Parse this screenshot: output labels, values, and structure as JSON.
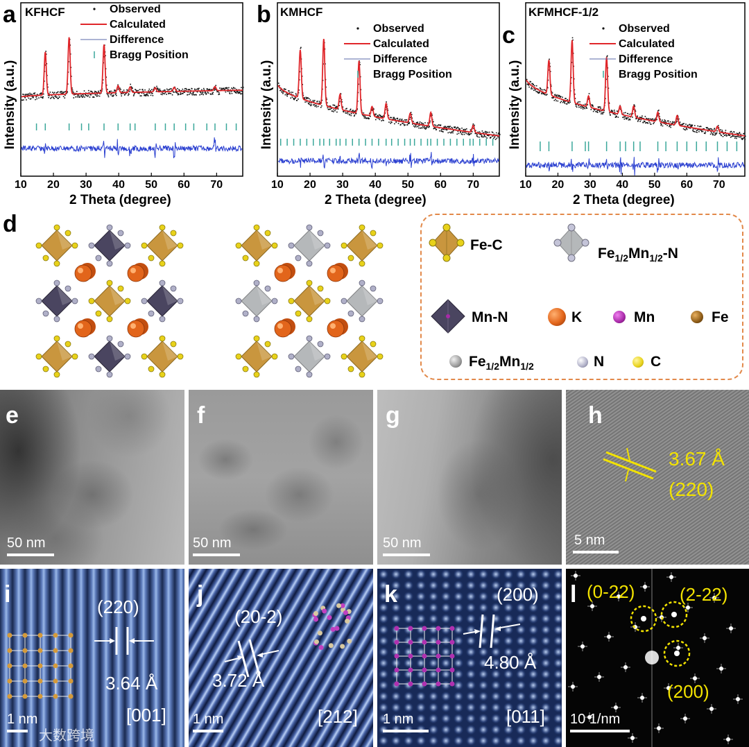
{
  "panel_labels": {
    "a": "a",
    "b": "b",
    "c": "c",
    "d": "d",
    "e": "e",
    "f": "f",
    "g": "g",
    "h": "h",
    "i": "i",
    "j": "j",
    "k": "k",
    "l": "l"
  },
  "xrd": [
    {
      "title": "KFHCF"
    },
    {
      "title": "KMHCF"
    },
    {
      "title": "KFMHCF-1/2"
    }
  ],
  "legend": {
    "observed": "Observed",
    "calculated": "Calculated",
    "difference": "Difference",
    "bragg": "Bragg Position"
  },
  "axes": {
    "xlabel": "2 Theta (degree)",
    "ylabel": "Intensity (a.u.)",
    "ticks": [
      "10",
      "20",
      "30",
      "40",
      "50",
      "60",
      "70"
    ]
  },
  "chart_data": [
    {
      "type": "line",
      "title": "KFHCF",
      "xlabel": "2 Theta (degree)",
      "ylabel": "Intensity (a.u.)",
      "xlim": [
        10,
        78
      ],
      "tick_labels": [
        "10",
        "20",
        "30",
        "40",
        "50",
        "60",
        "70"
      ],
      "peaks": [
        17.5,
        24.8,
        35.5,
        39.8,
        43.5,
        51.2,
        57.0,
        69.5
      ],
      "bragg_positions": [
        14.8,
        17.5,
        24.8,
        28.6,
        30.8,
        35.5,
        39.8,
        43.5,
        45.0,
        51.2,
        54.3,
        57.0,
        60.5,
        63.0,
        67.0,
        69.5,
        73.0,
        76.0
      ],
      "series": [
        {
          "name": "Observed"
        },
        {
          "name": "Calculated"
        },
        {
          "name": "Difference"
        },
        {
          "name": "Bragg Position"
        }
      ]
    },
    {
      "type": "line",
      "title": "KMHCF",
      "xlabel": "2 Theta (degree)",
      "ylabel": "Intensity (a.u.)",
      "xlim": [
        10,
        78
      ],
      "tick_labels": [
        "10",
        "20",
        "30",
        "40",
        "50",
        "60",
        "70"
      ],
      "peaks": [
        17.0,
        24.2,
        29.2,
        35.0,
        39.0,
        43.3,
        50.7,
        57.0,
        70.0
      ],
      "bragg_positions": [
        11.0,
        13.0,
        15.0,
        17.0,
        19.0,
        21.0,
        23.0,
        24.2,
        26.0,
        28.0,
        29.2,
        31.0,
        33.0,
        35.0,
        37.0,
        39.0,
        41.0,
        43.3,
        45.0,
        47.0,
        49.0,
        50.7,
        52.0,
        54.0,
        56.0,
        57.0,
        59.0,
        61.0,
        63.0,
        65.0,
        67.0,
        69.0,
        70.0,
        72.0,
        74.0,
        76.0
      ],
      "series": [
        {
          "name": "Observed"
        },
        {
          "name": "Calculated"
        },
        {
          "name": "Difference"
        },
        {
          "name": "Bragg Position"
        }
      ]
    },
    {
      "type": "line",
      "title": "KFMHCF-1/2",
      "xlabel": "2 Theta (degree)",
      "ylabel": "Intensity (a.u.)",
      "xlim": [
        10,
        78
      ],
      "tick_labels": [
        "10",
        "20",
        "30",
        "40",
        "50",
        "60",
        "70"
      ],
      "peaks": [
        17.2,
        24.4,
        29.5,
        35.1,
        39.3,
        43.5,
        51.0,
        57.0,
        69.5
      ],
      "bragg_positions": [
        14.5,
        17.2,
        24.4,
        28.5,
        29.5,
        35.1,
        39.3,
        41.0,
        43.5,
        45.5,
        51.0,
        53.5,
        57.0,
        60.0,
        63.0,
        66.0,
        69.5,
        72.5,
        75.5
      ],
      "series": [
        {
          "name": "Observed"
        },
        {
          "name": "Calculated"
        },
        {
          "name": "Difference"
        },
        {
          "name": "Bragg Position"
        }
      ]
    }
  ],
  "structure_legend": {
    "fec": "Fe-C",
    "femn_n_base": "Fe",
    "femn_n_sub1": "1/2",
    "femn_n_mid": "Mn",
    "femn_n_sub2": "1/2",
    "femn_n_end": "-N",
    "mnn": "Mn-N",
    "k": "K",
    "mn": "Mn",
    "fe": "Fe",
    "femn_base": "Fe",
    "femn_sub1": "1/2",
    "femn_mid": "Mn",
    "femn_sub2": "1/2",
    "n": "N",
    "c": "C"
  },
  "colors": {
    "fec": "#c9963e",
    "femnn": "#b5b8ba",
    "mnn": "#4a4560",
    "k": "#e2651b",
    "mn": "#a82aa8",
    "fe": "#8d5b16",
    "femn": "#9a9a9a",
    "n": "#b0b0c8",
    "c": "#e8d21a",
    "calc_red": "#e0262a",
    "diff_blue": "#2a3fd0",
    "bragg_teal": "#3aa79a",
    "yellow": "#f2e200"
  },
  "tem": {
    "e_scale": "50 nm",
    "f_scale": "50 nm",
    "g_scale": "50 nm",
    "h_scale": "5 nm",
    "h_spacing": "3.67 Å",
    "h_plane": "(220)",
    "i_plane": "(220)",
    "i_spacing": "3.64 Å",
    "i_zone": "[001]",
    "i_scale": "1 nm",
    "j_plane": "(20-2)",
    "j_spacing": "3.72 Å",
    "j_zone": "[212]",
    "j_scale": "1 nm",
    "k_plane": "(200)",
    "k_spacing": "4.80 Å",
    "k_zone": "[011]",
    "k_scale": "1 nm",
    "l_spot1": "(0-22)",
    "l_spot2": "(2-22)",
    "l_spot3": "(200)",
    "l_scale": "10 1/nm"
  },
  "watermark": "大数跨境"
}
